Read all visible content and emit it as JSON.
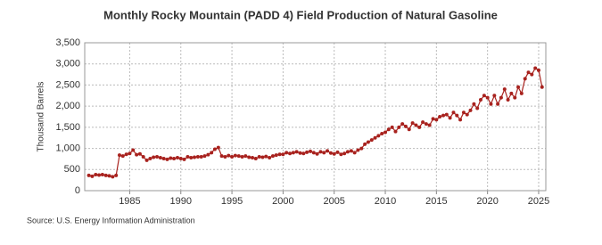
{
  "chart_data": {
    "type": "line",
    "title": "Monthly Rocky Mountain (PADD 4) Field Production of Natural Gasoline",
    "y_axis_label": "Thousand Barrels",
    "source": "Source: U.S. Energy Information Administration",
    "x": [
      1981,
      1981.33,
      1981.67,
      1982,
      1982.33,
      1982.67,
      1983,
      1983.33,
      1983.67,
      1984,
      1984.33,
      1984.67,
      1985,
      1985.33,
      1985.67,
      1986,
      1986.33,
      1986.67,
      1987,
      1987.33,
      1987.67,
      1988,
      1988.33,
      1988.67,
      1989,
      1989.33,
      1989.67,
      1990,
      1990.33,
      1990.67,
      1991,
      1991.33,
      1991.67,
      1992,
      1992.33,
      1992.67,
      1993,
      1993.33,
      1993.67,
      1994,
      1994.33,
      1994.67,
      1995,
      1995.33,
      1995.67,
      1996,
      1996.33,
      1996.67,
      1997,
      1997.33,
      1997.67,
      1998,
      1998.33,
      1998.67,
      1999,
      1999.33,
      1999.67,
      2000,
      2000.33,
      2000.67,
      2001,
      2001.33,
      2001.67,
      2002,
      2002.33,
      2002.67,
      2003,
      2003.33,
      2003.67,
      2004,
      2004.33,
      2004.67,
      2005,
      2005.33,
      2005.67,
      2006,
      2006.33,
      2006.67,
      2007,
      2007.33,
      2007.67,
      2008,
      2008.33,
      2008.67,
      2009,
      2009.33,
      2009.67,
      2010,
      2010.33,
      2010.67,
      2011,
      2011.33,
      2011.67,
      2012,
      2012.33,
      2012.67,
      2013,
      2013.33,
      2013.67,
      2014,
      2014.33,
      2014.67,
      2015,
      2015.33,
      2015.67,
      2016,
      2016.33,
      2016.67,
      2017,
      2017.33,
      2017.67,
      2018,
      2018.33,
      2018.67,
      2019,
      2019.33,
      2019.67,
      2020,
      2020.33,
      2020.67,
      2021,
      2021.33,
      2021.67,
      2022,
      2022.33,
      2022.67,
      2023,
      2023.33,
      2023.67,
      2024,
      2024.33,
      2024.67,
      2025,
      2025.33
    ],
    "series": [
      {
        "color": "#a8221e",
        "values": [
          360,
          340,
          380,
          370,
          380,
          360,
          350,
          330,
          360,
          840,
          820,
          860,
          880,
          960,
          850,
          870,
          800,
          720,
          760,
          790,
          800,
          780,
          760,
          740,
          770,
          760,
          780,
          760,
          740,
          800,
          780,
          790,
          800,
          800,
          820,
          850,
          900,
          980,
          1020,
          820,
          800,
          830,
          800,
          830,
          820,
          800,
          820,
          790,
          780,
          760,
          800,
          790,
          810,
          780,
          820,
          840,
          860,
          860,
          900,
          880,
          900,
          920,
          890,
          880,
          910,
          930,
          900,
          870,
          920,
          900,
          940,
          890,
          870,
          910,
          860,
          880,
          920,
          940,
          900,
          960,
          1000,
          1100,
          1150,
          1200,
          1250,
          1300,
          1350,
          1380,
          1450,
          1500,
          1400,
          1500,
          1580,
          1520,
          1450,
          1600,
          1550,
          1500,
          1620,
          1580,
          1550,
          1700,
          1680,
          1750,
          1780,
          1800,
          1720,
          1850,
          1780,
          1680,
          1850,
          1800,
          1900,
          2050,
          1950,
          2150,
          2250,
          2200,
          2050,
          2250,
          2050,
          2200,
          2400,
          2150,
          2300,
          2200,
          2450,
          2300,
          2650,
          2800,
          2750,
          2900,
          2850,
          2450
        ]
      }
    ],
    "xlim": [
      1980.6,
      2025.7
    ],
    "xticks": [
      1985,
      1990,
      1995,
      2000,
      2005,
      2010,
      2015,
      2020,
      2025
    ],
    "ylim": [
      0,
      3500
    ],
    "yticks": [
      0,
      500,
      {
        "value": 1000,
        "label": "1,000"
      },
      {
        "value": 1500,
        "label": "1,500"
      },
      {
        "value": 2000,
        "label": "2,000"
      },
      {
        "value": 2500,
        "label": "2,500"
      },
      {
        "value": 3000,
        "label": "3,000"
      },
      {
        "value": 3500,
        "label": "3,500"
      }
    ],
    "grid": true
  }
}
